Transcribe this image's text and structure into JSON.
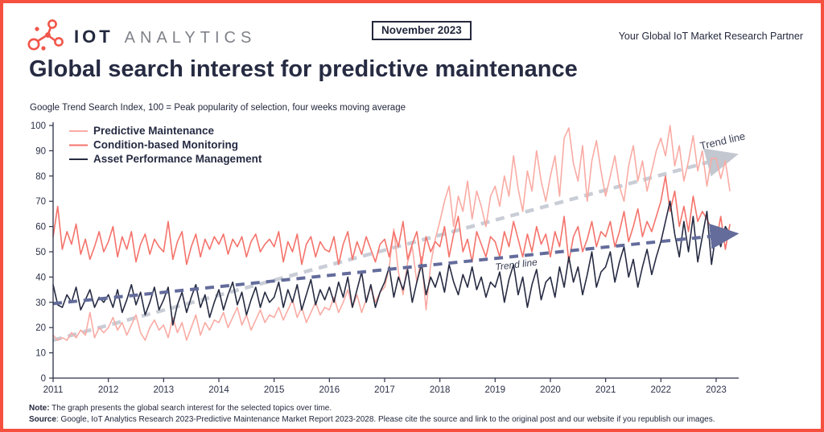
{
  "page": {
    "border_color": "#F6503F"
  },
  "header": {
    "logo": {
      "icon": "molecule-network-icon",
      "icon_color": "#F1564A",
      "brand_bold": "IOT",
      "brand_light": "ANALYTICS"
    },
    "date_badge": "November 2023",
    "tagline": "Your Global IoT Market Research Partner"
  },
  "title": "Global search interest for predictive maintenance",
  "subtitle": "Google Trend Search Index, 100 = Peak popularity of selection, four weeks moving average",
  "footer": {
    "note_label": "Note:",
    "note_text": " The graph presents the global search interest for the selected topics over time.",
    "source_label": "Source",
    "source_text": ": Google, IoT Analytics Research 2023-Predictive Maintenance Market Report 2023-2028. Please cite the source and link to the original post and our website if you republish our images."
  },
  "chart_data": {
    "type": "line",
    "title": "Global search interest for predictive maintenance",
    "subtitle": "Google Trend Search Index, 100 = Peak popularity of selection, four weeks moving average",
    "xlabel": "",
    "ylabel": "",
    "grid": false,
    "legend_position": "top-left",
    "xlim": [
      2011,
      2023.35
    ],
    "ylim": [
      0,
      100
    ],
    "y_ticks": [
      0,
      10,
      20,
      30,
      40,
      50,
      60,
      70,
      80,
      90,
      100
    ],
    "x_ticks": [
      2011,
      2012,
      2013,
      2014,
      2015,
      2016,
      2017,
      2018,
      2019,
      2020,
      2021,
      2022,
      2023
    ],
    "x_start": 2011.0,
    "x_step_years": 0.0833333,
    "axis_color": "#2B3147",
    "series": [
      {
        "name": "Predictive Maintenance",
        "color": "#F9ABA4",
        "values": [
          17,
          15,
          16,
          15,
          18,
          16,
          19,
          17,
          26,
          16,
          20,
          18,
          20,
          24,
          19,
          22,
          17,
          21,
          25,
          18,
          15,
          20,
          23,
          19,
          21,
          16,
          24,
          18,
          22,
          15,
          20,
          25,
          17,
          22,
          19,
          23,
          22,
          26,
          20,
          24,
          28,
          21,
          25,
          19,
          23,
          27,
          22,
          25,
          24,
          28,
          23,
          27,
          31,
          24,
          28,
          22,
          26,
          30,
          25,
          28,
          27,
          32,
          26,
          30,
          35,
          28,
          33,
          26,
          31,
          36,
          30,
          34,
          36,
          44,
          59,
          42,
          33,
          46,
          52,
          38,
          48,
          27,
          45,
          55,
          62,
          70,
          76,
          60,
          72,
          66,
          78,
          63,
          74,
          68,
          60,
          72,
          76,
          68,
          80,
          72,
          88,
          75,
          66,
          82,
          74,
          90,
          78,
          70,
          80,
          88,
          72,
          95,
          99,
          85,
          78,
          92,
          70,
          86,
          94,
          82,
          72,
          80,
          88,
          76,
          70,
          84,
          92,
          78,
          86,
          74,
          82,
          90,
          95,
          88,
          100,
          84,
          92,
          78,
          86,
          96,
          82,
          90,
          76,
          87,
          87,
          79,
          86,
          74
        ]
      },
      {
        "name": "Condition-based Monitoring",
        "color": "#F4736B",
        "values": [
          56,
          68,
          51,
          58,
          53,
          61,
          49,
          55,
          47,
          52,
          58,
          50,
          54,
          60,
          48,
          56,
          51,
          58,
          46,
          53,
          57,
          49,
          55,
          52,
          50,
          62,
          47,
          54,
          58,
          45,
          52,
          57,
          48,
          55,
          51,
          56,
          53,
          57,
          49,
          55,
          52,
          56,
          48,
          54,
          57,
          50,
          53,
          55,
          52,
          58,
          46,
          54,
          50,
          57,
          45,
          53,
          56,
          48,
          54,
          51,
          50,
          56,
          45,
          53,
          58,
          47,
          54,
          49,
          56,
          51,
          46,
          53,
          55,
          48,
          58,
          52,
          62,
          47,
          53,
          58,
          45,
          56,
          50,
          54,
          52,
          60,
          48,
          57,
          64,
          50,
          55,
          46,
          58,
          53,
          48,
          56,
          54,
          48,
          58,
          52,
          62,
          55,
          48,
          57,
          50,
          60,
          53,
          57,
          48,
          58,
          52,
          64,
          46,
          56,
          60,
          50,
          55,
          62,
          52,
          58,
          56,
          62,
          52,
          58,
          66,
          54,
          60,
          67,
          56,
          62,
          58,
          64,
          70,
          80,
          66,
          74,
          60,
          68,
          58,
          72,
          62,
          66,
          63,
          59,
          54,
          64,
          51,
          61
        ]
      },
      {
        "name": "Asset Performance Management",
        "color": "#262B42",
        "values": [
          37,
          29,
          28,
          33,
          30,
          36,
          27,
          31,
          35,
          28,
          32,
          30,
          33,
          28,
          35,
          26,
          31,
          37,
          29,
          34,
          25,
          30,
          36,
          27,
          31,
          36,
          21,
          29,
          34,
          26,
          32,
          37,
          28,
          33,
          24,
          30,
          35,
          27,
          33,
          38,
          29,
          34,
          25,
          31,
          36,
          28,
          34,
          30,
          32,
          38,
          28,
          35,
          30,
          37,
          27,
          33,
          39,
          29,
          35,
          31,
          36,
          30,
          38,
          32,
          40,
          28,
          35,
          42,
          30,
          37,
          28,
          34,
          38,
          44,
          32,
          40,
          35,
          43,
          30,
          38,
          45,
          33,
          40,
          36,
          42,
          34,
          45,
          38,
          33,
          41,
          36,
          44,
          35,
          40,
          32,
          38,
          36,
          42,
          30,
          39,
          45,
          33,
          40,
          28,
          37,
          43,
          31,
          38,
          40,
          32,
          44,
          36,
          48,
          38,
          44,
          33,
          41,
          50,
          36,
          42,
          44,
          50,
          38,
          46,
          52,
          40,
          47,
          36,
          44,
          51,
          41,
          48,
          54,
          62,
          70,
          57,
          48,
          62,
          50,
          64,
          46,
          56,
          66,
          45,
          58,
          52,
          60,
          57
        ]
      }
    ],
    "trend_lines": [
      {
        "label": "Trend line",
        "for_series": "Predictive Maintenance",
        "color": "#C9CDD6",
        "from": [
          2011.0,
          15
        ],
        "to": [
          2023.28,
          88
        ],
        "label_angle": -13
      },
      {
        "label": "Trend line",
        "for_series": "Asset Performance Management",
        "color": "#636C9B",
        "from": [
          2011.0,
          29.5
        ],
        "to": [
          2023.3,
          57
        ],
        "label_angle": -7
      }
    ]
  }
}
